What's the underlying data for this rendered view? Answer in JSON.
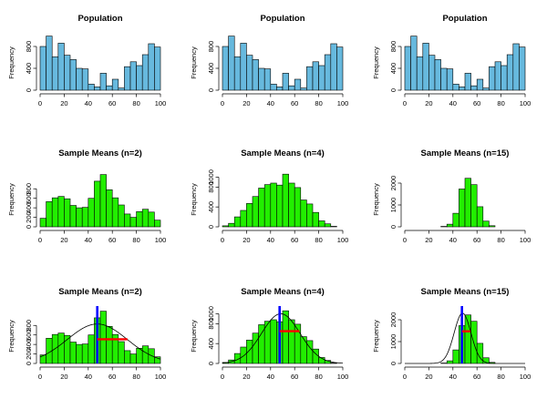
{
  "chart_data": [
    {
      "type": "bar",
      "title": "Population",
      "ylabel": "Frequency",
      "xlim": [
        0,
        100
      ],
      "ylim": [
        0,
        1000
      ],
      "xticks": [
        0,
        20,
        40,
        60,
        80,
        100
      ],
      "yticks": [
        0,
        400,
        800
      ],
      "bin_width": 5,
      "bin_start": 0,
      "color": "#67b9de",
      "values": [
        800,
        990,
        610,
        860,
        640,
        560,
        400,
        390,
        110,
        60,
        310,
        80,
        200,
        40,
        430,
        520,
        450,
        650,
        850,
        790
      ]
    },
    {
      "type": "bar",
      "title": "Population",
      "ylabel": "Frequency",
      "xlim": [
        0,
        100
      ],
      "ylim": [
        0,
        1000
      ],
      "xticks": [
        0,
        20,
        40,
        60,
        80,
        100
      ],
      "yticks": [
        0,
        400,
        800
      ],
      "bin_width": 5,
      "bin_start": 0,
      "color": "#67b9de",
      "values": [
        800,
        990,
        610,
        860,
        640,
        560,
        400,
        390,
        110,
        60,
        310,
        80,
        200,
        40,
        430,
        520,
        450,
        650,
        850,
        790
      ]
    },
    {
      "type": "bar",
      "title": "Population",
      "ylabel": "Frequency",
      "xlim": [
        0,
        100
      ],
      "ylim": [
        0,
        1000
      ],
      "xticks": [
        0,
        20,
        40,
        60,
        80,
        100
      ],
      "yticks": [
        0,
        400,
        800
      ],
      "bin_width": 5,
      "bin_start": 0,
      "color": "#67b9de",
      "values": [
        800,
        990,
        610,
        860,
        640,
        560,
        400,
        390,
        110,
        60,
        310,
        80,
        200,
        40,
        430,
        520,
        450,
        650,
        850,
        790
      ]
    },
    {
      "type": "bar",
      "title": "Sample Means (n=2)",
      "ylabel": "Frequency",
      "xlim": [
        0,
        100
      ],
      "ylim": [
        0,
        1150
      ],
      "xticks": [
        0,
        20,
        40,
        60,
        80,
        100
      ],
      "yticks": [
        0,
        200,
        400,
        600,
        800
      ],
      "bin_width": 5,
      "bin_start": 0,
      "color": "#22ee00",
      "values": [
        180,
        530,
        610,
        640,
        590,
        450,
        400,
        410,
        600,
        960,
        1100,
        780,
        610,
        460,
        270,
        200,
        320,
        370,
        310,
        140
      ]
    },
    {
      "type": "bar",
      "title": "Sample Means (n=4)",
      "ylabel": "Frequency",
      "xlim": [
        0,
        100
      ],
      "ylim": [
        0,
        1100
      ],
      "xticks": [
        0,
        20,
        40,
        60,
        80,
        100
      ],
      "yticks": [
        0,
        400,
        800,
        1000
      ],
      "bin_width": 5,
      "bin_start": 0,
      "color": "#22ee00",
      "values": [
        20,
        70,
        200,
        330,
        470,
        610,
        780,
        850,
        880,
        840,
        1060,
        880,
        790,
        540,
        460,
        290,
        120,
        60,
        10,
        0
      ]
    },
    {
      "type": "bar",
      "title": "Sample Means (n=15)",
      "ylabel": "Frequency",
      "xlim": [
        0,
        100
      ],
      "ylim": [
        0,
        2500
      ],
      "xticks": [
        0,
        20,
        40,
        60,
        80,
        100
      ],
      "yticks": [
        0,
        1000,
        2000
      ],
      "bin_width": 5,
      "bin_start": 0,
      "color": "#22ee00",
      "values": [
        0,
        0,
        0,
        0,
        0,
        0,
        20,
        120,
        620,
        1730,
        2220,
        1930,
        920,
        260,
        50,
        0,
        0,
        0,
        0,
        0
      ]
    },
    {
      "type": "bar",
      "title": "Sample Means (n=2)",
      "ylabel": "Frequency",
      "xlim": [
        0,
        100
      ],
      "ylim": [
        0,
        1150
      ],
      "xticks": [
        0,
        20,
        40,
        60,
        80,
        100
      ],
      "yticks": [
        0,
        200,
        400,
        600,
        800
      ],
      "bin_width": 5,
      "bin_start": 0,
      "color": "#22ee00",
      "values": [
        180,
        530,
        610,
        640,
        590,
        450,
        400,
        410,
        600,
        960,
        1100,
        780,
        610,
        460,
        270,
        200,
        320,
        370,
        310,
        140
      ],
      "normal_curve": {
        "mean": 47.5,
        "sd": 25,
        "peak": 830
      },
      "mean_line": {
        "x": 47.5,
        "color": "#0000ff"
      },
      "sd_segment": {
        "x_start": 47.5,
        "x_end": 72.5,
        "y": 510,
        "color": "#ff0000"
      }
    },
    {
      "type": "bar",
      "title": "Sample Means (n=4)",
      "ylabel": "Frequency",
      "xlim": [
        0,
        100
      ],
      "ylim": [
        0,
        1100
      ],
      "xticks": [
        0,
        20,
        40,
        60,
        80,
        100
      ],
      "yticks": [
        0,
        400,
        800,
        1000
      ],
      "bin_width": 5,
      "bin_start": 0,
      "color": "#22ee00",
      "values": [
        20,
        70,
        200,
        330,
        470,
        610,
        780,
        850,
        880,
        840,
        1060,
        880,
        790,
        540,
        460,
        290,
        120,
        60,
        10,
        0
      ],
      "normal_curve": {
        "mean": 48.5,
        "sd": 16,
        "peak": 1000
      },
      "mean_line": {
        "x": 47.5,
        "color": "#0000ff"
      },
      "sd_segment": {
        "x_start": 47.5,
        "x_end": 64,
        "y": 650,
        "color": "#ff0000"
      }
    },
    {
      "type": "bar",
      "title": "Sample Means (n=15)",
      "ylabel": "Frequency",
      "xlim": [
        0,
        100
      ],
      "ylim": [
        0,
        2500
      ],
      "xticks": [
        0,
        20,
        40,
        60,
        80,
        100
      ],
      "yticks": [
        0,
        1000,
        2000
      ],
      "bin_width": 5,
      "bin_start": 0,
      "color": "#22ee00",
      "values": [
        0,
        0,
        0,
        0,
        0,
        0,
        20,
        120,
        620,
        1730,
        2220,
        1930,
        920,
        260,
        50,
        0,
        0,
        0,
        0,
        0
      ],
      "normal_curve": {
        "mean": 48,
        "sd": 7,
        "peak": 2300
      },
      "mean_line": {
        "x": 47.5,
        "color": "#0000ff"
      },
      "sd_segment": {
        "x_start": 47.5,
        "x_end": 54.5,
        "y": 1470,
        "color": "#ff0000"
      }
    }
  ]
}
